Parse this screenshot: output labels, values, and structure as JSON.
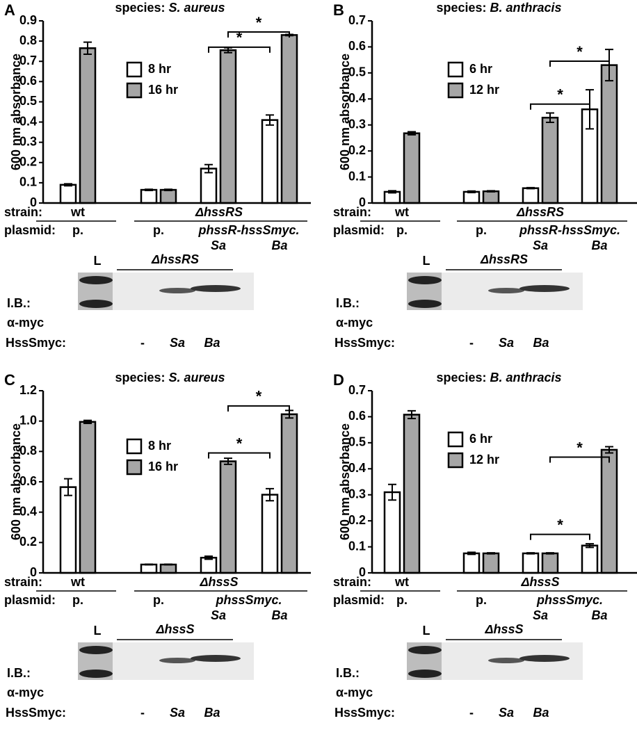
{
  "chart_data": [
    {
      "type": "bar",
      "panel": "A",
      "title": [
        "species:",
        "S. aureus"
      ],
      "y_label": "600 nm absorbance",
      "ylim": [
        0,
        0.9
      ],
      "yticks": [
        0,
        0.1,
        0.2,
        0.3,
        0.4,
        0.5,
        0.6,
        0.7,
        0.8,
        0.9
      ],
      "categories": [
        "p.",
        "p.",
        "Sa",
        "Ba"
      ],
      "series": [
        {
          "name": "8 hr",
          "color": "#ffffff",
          "values": [
            0.09,
            0.065,
            0.17,
            0.41
          ],
          "errors": [
            0.005,
            0.003,
            0.02,
            0.025
          ]
        },
        {
          "name": "16 hr",
          "color": "#a6a6a6",
          "values": [
            0.765,
            0.065,
            0.755,
            0.83
          ],
          "errors": [
            0.03,
            0.003,
            0.012,
            0.003
          ]
        }
      ],
      "strain_label": "strain:",
      "strains": [
        "wt",
        "ΔhssRS"
      ],
      "plasmid_label": "plasmid:",
      "plasmid_construct": "phssR-hssSmyc.",
      "annotations": [
        "*",
        "*"
      ],
      "blot": {
        "ladder": "L",
        "strain": "ΔhssRS",
        "probe": [
          "I.B.:",
          "α-myc"
        ],
        "lane_label": "HssSmyc:",
        "lanes": [
          "-",
          "Sa",
          "Ba"
        ]
      }
    },
    {
      "type": "bar",
      "panel": "B",
      "title": [
        "species:",
        "B. anthracis"
      ],
      "y_label": "600 nm absorbance",
      "ylim": [
        0,
        0.7
      ],
      "yticks": [
        0,
        0.1,
        0.2,
        0.3,
        0.4,
        0.5,
        0.6,
        0.7
      ],
      "categories": [
        "p.",
        "p.",
        "Sa",
        "Ba"
      ],
      "series": [
        {
          "name": "6 hr",
          "color": "#ffffff",
          "values": [
            0.043,
            0.043,
            0.057,
            0.36
          ],
          "errors": [
            0.004,
            0.003,
            0.002,
            0.075
          ]
        },
        {
          "name": "12 hr",
          "color": "#a6a6a6",
          "values": [
            0.268,
            0.045,
            0.328,
            0.53
          ],
          "errors": [
            0.006,
            0.002,
            0.018,
            0.06
          ]
        }
      ],
      "strain_label": "strain:",
      "strains": [
        "wt",
        "ΔhssRS"
      ],
      "plasmid_label": "plasmid:",
      "plasmid_construct": "phssR-hssSmyc.",
      "annotations": [
        "*",
        "*"
      ],
      "blot": {
        "ladder": "L",
        "strain": "ΔhssRS",
        "probe": [
          "I.B.:",
          "α-myc"
        ],
        "lane_label": "HssSmyc:",
        "lanes": [
          "-",
          "Sa",
          "Ba"
        ]
      }
    },
    {
      "type": "bar",
      "panel": "C",
      "title": [
        "species:",
        "S. aureus"
      ],
      "y_label": "600 nm absorbance",
      "ylim": [
        0,
        1.2
      ],
      "yticks": [
        0,
        0.2,
        0.4,
        0.6,
        0.8,
        {
          "value": 1,
          "label": "1.0"
        },
        1.2
      ],
      "categories": [
        "p.",
        "p.",
        "Sa",
        "Ba"
      ],
      "series": [
        {
          "name": "8 hr",
          "color": "#ffffff",
          "values": [
            0.565,
            0.055,
            0.1,
            0.515
          ],
          "errors": [
            0.055,
            0.002,
            0.01,
            0.04
          ]
        },
        {
          "name": "16 hr",
          "color": "#a6a6a6",
          "values": [
            0.995,
            0.055,
            0.735,
            1.045
          ],
          "errors": [
            0.01,
            0.002,
            0.02,
            0.025
          ]
        }
      ],
      "strain_label": "strain:",
      "strains": [
        "wt",
        "ΔhssS"
      ],
      "plasmid_label": "plasmid:",
      "plasmid_construct": "phssSmyc.",
      "annotations": [
        "*",
        "*"
      ],
      "blot": {
        "ladder": "L",
        "strain": "ΔhssS",
        "probe": [
          "I.B.:",
          "α-myc"
        ],
        "lane_label": "HssSmyc:",
        "lanes": [
          "-",
          "Sa",
          "Ba"
        ]
      }
    },
    {
      "type": "bar",
      "panel": "D",
      "title": [
        "species:",
        "B. anthracis"
      ],
      "y_label": "600 nm absorbance",
      "ylim": [
        0,
        0.7
      ],
      "yticks": [
        0,
        0.1,
        0.2,
        0.3,
        0.4,
        0.5,
        0.6,
        0.7
      ],
      "categories": [
        "p.",
        "p.",
        "Sa",
        "Ba"
      ],
      "series": [
        {
          "name": "6 hr",
          "color": "#ffffff",
          "values": [
            0.31,
            0.075,
            0.075,
            0.105
          ],
          "errors": [
            0.03,
            0.004,
            0.002,
            0.007
          ]
        },
        {
          "name": "12 hr",
          "color": "#a6a6a6",
          "values": [
            0.608,
            0.075,
            0.075,
            0.473
          ],
          "errors": [
            0.015,
            0.002,
            0.002,
            0.012
          ]
        }
      ],
      "strain_label": "strain:",
      "strains": [
        "wt",
        "ΔhssS"
      ],
      "plasmid_label": "plasmid:",
      "plasmid_construct": "phssSmyc.",
      "annotations": [
        "*",
        "*"
      ],
      "blot": {
        "ladder": "L",
        "strain": "ΔhssS",
        "probe": [
          "I.B.:",
          "α-myc"
        ],
        "lane_label": "HssSmyc:",
        "lanes": [
          "-",
          "Sa",
          "Ba"
        ]
      }
    }
  ]
}
